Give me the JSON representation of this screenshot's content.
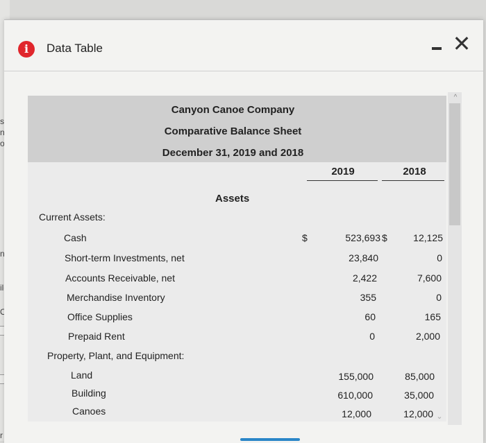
{
  "window": {
    "title": "Data Table"
  },
  "background": {
    "fragments": [
      "s",
      "n",
      "o",
      "ng",
      "ile",
      "Op",
      "r ente"
    ]
  },
  "statement": {
    "company": "Canyon Canoe Company",
    "name": "Comparative Balance Sheet",
    "date": "December 31, 2019 and 2018",
    "years": [
      "2019",
      "2018"
    ],
    "section": "Assets",
    "currency_symbol": "$",
    "categories": {
      "current": "Current Assets:",
      "ppe": "Property, Plant, and Equipment:"
    },
    "rows": [
      {
        "label": "Cash",
        "y2019": "523,693",
        "y2018": "12,125"
      },
      {
        "label": "Short-term Investments, net",
        "y2019": "23,840",
        "y2018": "0"
      },
      {
        "label": "Accounts Receivable, net",
        "y2019": "2,422",
        "y2018": "7,600"
      },
      {
        "label": "Merchandise Inventory",
        "y2019": "355",
        "y2018": "0"
      },
      {
        "label": "Office Supplies",
        "y2019": "60",
        "y2018": "165"
      },
      {
        "label": "Prepaid Rent",
        "y2019": "0",
        "y2018": "2,000"
      },
      {
        "label": "Land",
        "y2019": "155,000",
        "y2018": "85,000"
      },
      {
        "label": "Building",
        "y2019": "610,000",
        "y2018": "35,000"
      },
      {
        "label": "Canoes",
        "y2019": "12,000",
        "y2018": "12,000"
      }
    ]
  },
  "colors": {
    "info_icon": "#e0262c",
    "header_band": "#cfcfcf",
    "accent": "#2a86c8"
  },
  "icons": {
    "info": "info-icon",
    "minimize": "minimize-icon",
    "close": "close-icon"
  },
  "glyphs": {
    "info": "i",
    "close": "✕",
    "scroll_up": "^",
    "scroll_down": "⌄"
  }
}
